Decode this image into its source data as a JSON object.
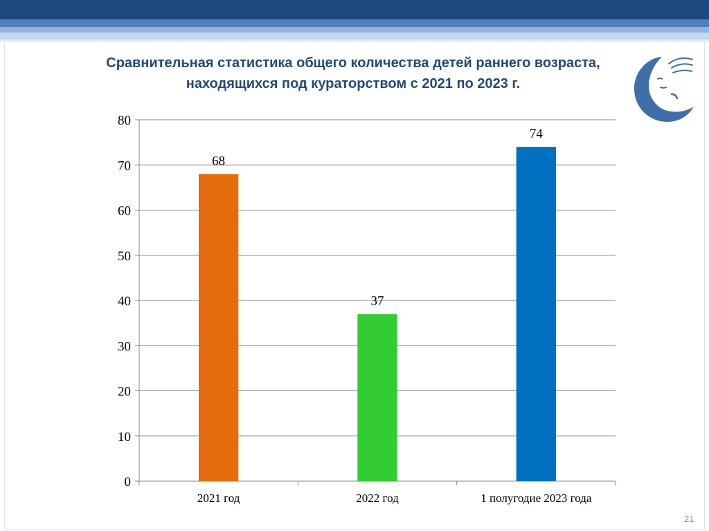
{
  "slide": {
    "title_line1": "Сравнительная статистика общего количества детей раннего возраста,",
    "title_line2": "находящихся под кураторством  с 2021 по 2023 г.",
    "page_number": "21"
  },
  "colors": {
    "title": "#1f497d",
    "logo": "#3f6fa8",
    "grid": "#868686"
  },
  "chart_data": {
    "type": "bar",
    "categories": [
      "2021 год",
      "2022 год",
      "1 полугодие 2023 года"
    ],
    "values": [
      68,
      37,
      74
    ],
    "bar_colors": [
      "#e46c0a",
      "#33cc33",
      "#0070c0"
    ],
    "data_labels": [
      "68",
      "37",
      "74"
    ],
    "ylim": [
      0,
      80
    ],
    "yticks": [
      0,
      10,
      20,
      30,
      40,
      50,
      60,
      70,
      80
    ],
    "grid": true,
    "legend": "none"
  }
}
